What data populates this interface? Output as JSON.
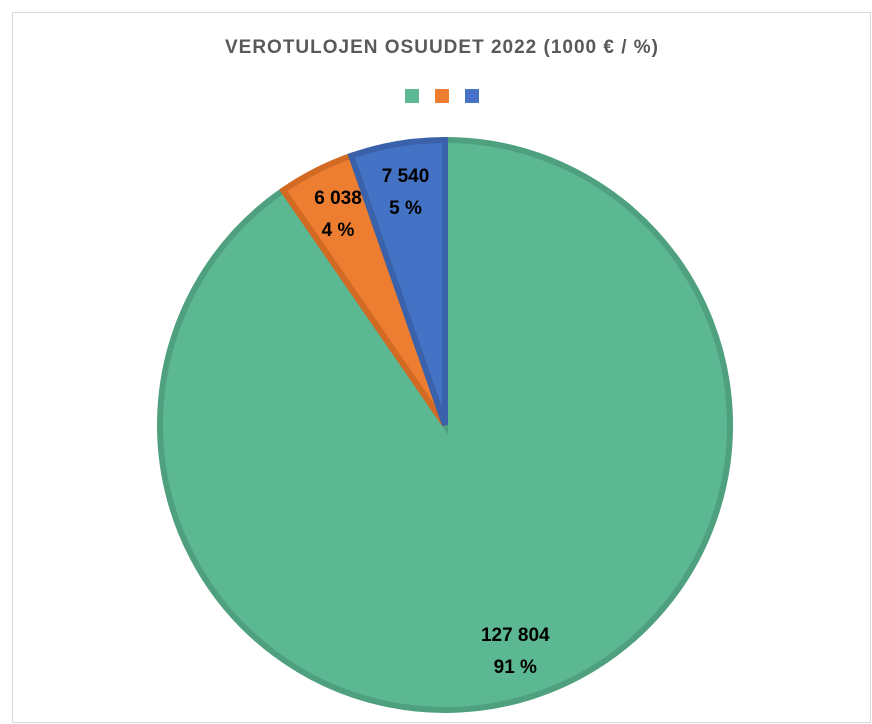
{
  "chart_data": {
    "type": "pie",
    "title": "VEROTULOJEN OSUUDET 2022 (1000 € / %)",
    "categories": [
      null,
      null,
      null
    ],
    "values": [
      127804,
      6038,
      7540
    ],
    "value_labels": [
      "127 804",
      "6 038",
      "7 540"
    ],
    "percents": [
      91,
      4,
      5
    ],
    "percent_labels": [
      "91 %",
      "4 %",
      "5 %"
    ],
    "colors": [
      "#5cb893",
      "#ed7d31",
      "#4472c4"
    ],
    "border_colors": [
      "#4fa07f",
      "#d26a24",
      "#3a62aa"
    ],
    "legend": "top"
  }
}
